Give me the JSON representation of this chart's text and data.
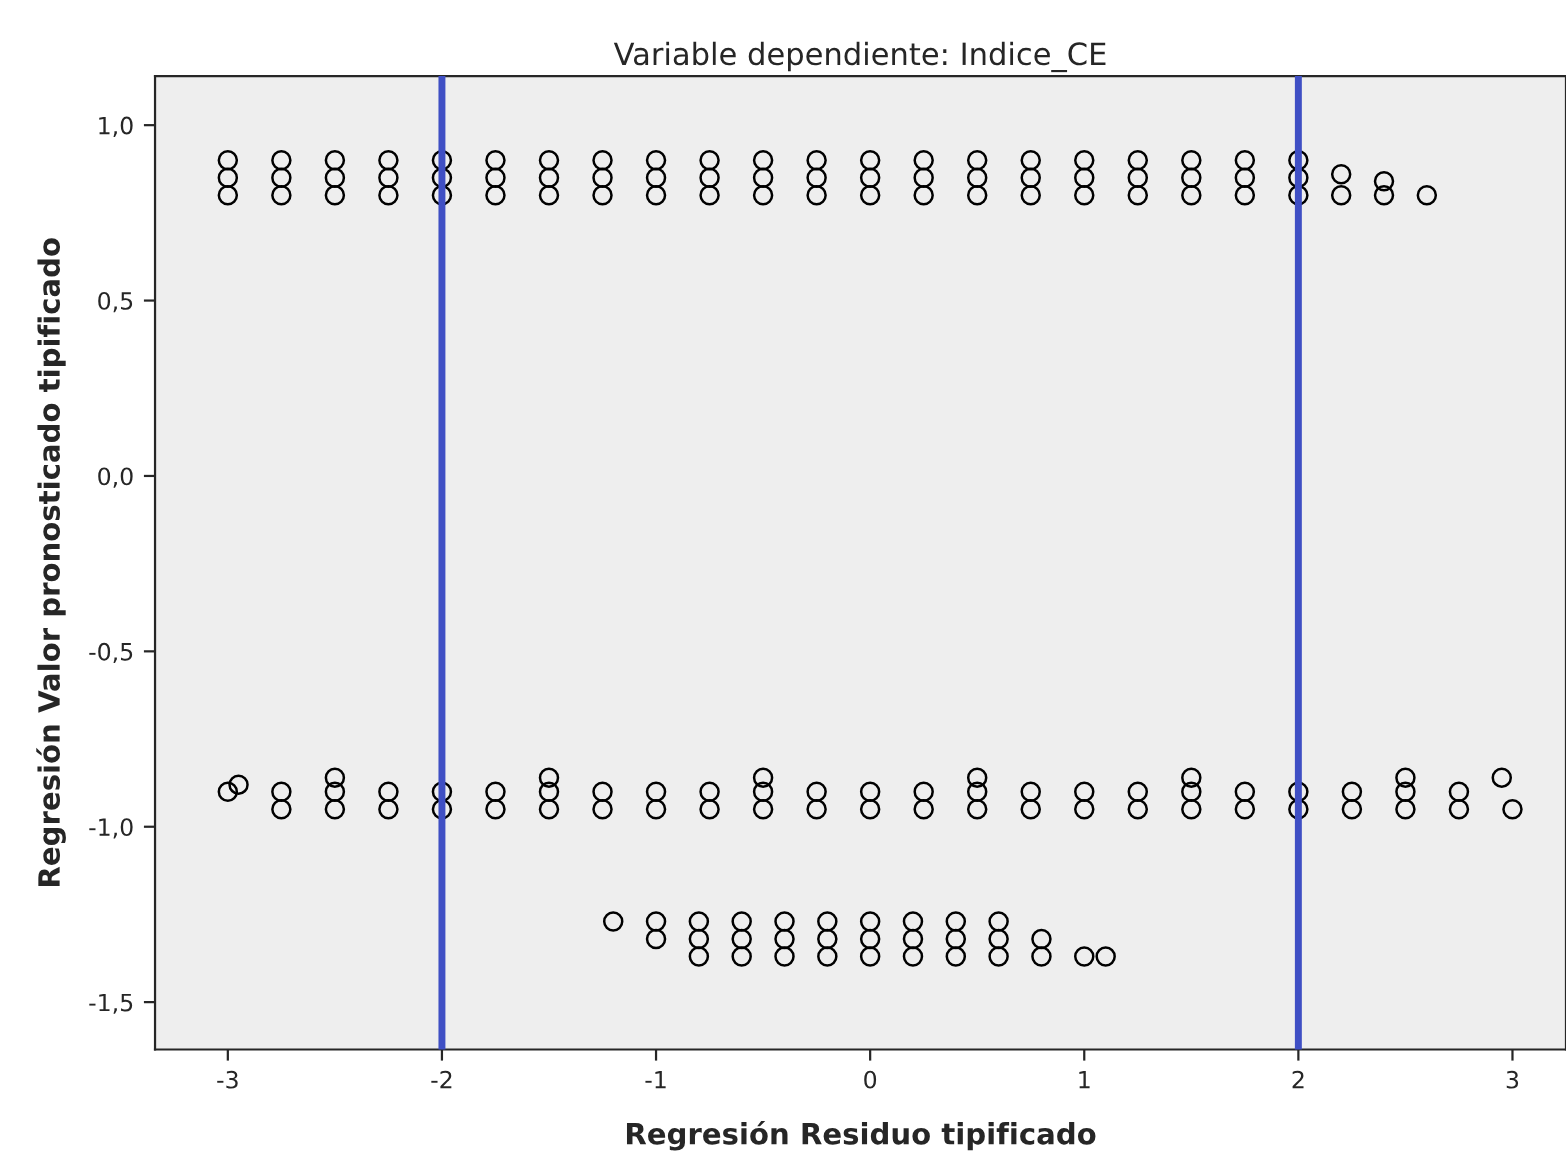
{
  "chart_data": {
    "type": "scatter",
    "title": "Variable dependiente: Indice_CE",
    "xlabel": "Regresión Residuo tipificado",
    "ylabel": "Regresión Valor pronosticado tipificado",
    "xlim": [
      -3.34,
      3.25
    ],
    "ylim": [
      -1.635,
      1.14
    ],
    "xticks": [
      -3,
      -2,
      -1,
      0,
      1,
      2,
      3
    ],
    "yticks": [
      {
        "value": -1.5,
        "label": "-1,5"
      },
      {
        "value": -1.0,
        "label": "-1,0"
      },
      {
        "value": -0.5,
        "label": "-0,5"
      },
      {
        "value": 0.0,
        "label": "0,0"
      },
      {
        "value": 0.5,
        "label": "0,5"
      },
      {
        "value": 1.0,
        "label": "1,0"
      }
    ],
    "grid": false,
    "legend": false,
    "marker": "circle",
    "ref_lines": [
      {
        "axis": "x",
        "value": -2,
        "color": "#3f4fc4"
      },
      {
        "axis": "x",
        "value": 2,
        "color": "#3f4fc4"
      }
    ],
    "series": [
      {
        "color": "#000000",
        "x": [
          -3,
          -2.75,
          -2.5,
          -2.25,
          -2,
          -1.75,
          -1.5,
          -1.25,
          -1,
          -0.75,
          -0.5,
          -0.25,
          0,
          0.25,
          0.5,
          0.75,
          1,
          1.25,
          1.5,
          1.75,
          2,
          -3,
          -2.75,
          -2.5,
          -2.25,
          -2,
          -1.75,
          -1.5,
          -1.25,
          -1,
          -0.75,
          -0.5,
          -0.25,
          0,
          0.25,
          0.5,
          0.75,
          1,
          1.25,
          1.5,
          1.75,
          2,
          -3,
          -2.75,
          -2.5,
          -2.25,
          -2,
          -1.75,
          -1.5,
          -1.25,
          -1,
          -0.75,
          -0.5,
          -0.25,
          0,
          0.25,
          0.5,
          0.75,
          1,
          1.25,
          1.5,
          1.75,
          2,
          2.2,
          2.2,
          2.4,
          2.4,
          2.6
        ],
        "values": [
          0.9,
          0.9,
          0.9,
          0.9,
          0.9,
          0.9,
          0.9,
          0.9,
          0.9,
          0.9,
          0.9,
          0.9,
          0.9,
          0.9,
          0.9,
          0.9,
          0.9,
          0.9,
          0.9,
          0.9,
          0.9,
          0.85,
          0.85,
          0.85,
          0.85,
          0.85,
          0.85,
          0.85,
          0.85,
          0.85,
          0.85,
          0.85,
          0.85,
          0.85,
          0.85,
          0.85,
          0.85,
          0.85,
          0.85,
          0.85,
          0.85,
          0.85,
          0.8,
          0.8,
          0.8,
          0.8,
          0.8,
          0.8,
          0.8,
          0.8,
          0.8,
          0.8,
          0.8,
          0.8,
          0.8,
          0.8,
          0.8,
          0.8,
          0.8,
          0.8,
          0.8,
          0.8,
          0.8,
          0.8,
          0.86,
          0.8,
          0.84,
          0.8
        ]
      },
      {
        "color": "#000000",
        "x": [
          -2.75,
          -2.5,
          -2.25,
          -2,
          -1.75,
          -1.5,
          -1.25,
          -1,
          -0.75,
          -0.5,
          -0.25,
          0,
          0.25,
          0.5,
          0.75,
          1,
          1.25,
          1.5,
          1.75,
          2,
          2.25,
          2.5,
          2.75,
          3,
          -3,
          -2.75,
          -2.5,
          -2.25,
          -2,
          -1.75,
          -1.5,
          -1.25,
          -1,
          -0.75,
          -0.5,
          -0.25,
          0,
          0.25,
          0.5,
          0.75,
          1,
          1.25,
          1.5,
          1.75,
          2,
          2.25,
          2.5,
          2.75,
          -2.5,
          -1.5,
          -0.5,
          0.5,
          1.5,
          2.5,
          2.95,
          -2.95
        ],
        "values": [
          -0.95,
          -0.95,
          -0.95,
          -0.95,
          -0.95,
          -0.95,
          -0.95,
          -0.95,
          -0.95,
          -0.95,
          -0.95,
          -0.95,
          -0.95,
          -0.95,
          -0.95,
          -0.95,
          -0.95,
          -0.95,
          -0.95,
          -0.95,
          -0.95,
          -0.95,
          -0.95,
          -0.95,
          -0.9,
          -0.9,
          -0.9,
          -0.9,
          -0.9,
          -0.9,
          -0.9,
          -0.9,
          -0.9,
          -0.9,
          -0.9,
          -0.9,
          -0.9,
          -0.9,
          -0.9,
          -0.9,
          -0.9,
          -0.9,
          -0.9,
          -0.9,
          -0.9,
          -0.9,
          -0.9,
          -0.9,
          -0.86,
          -0.86,
          -0.86,
          -0.86,
          -0.86,
          -0.86,
          -0.86,
          -0.88
        ]
      },
      {
        "color": "#000000",
        "x": [
          -1.2,
          -1,
          -0.8,
          -0.6,
          -0.4,
          -0.2,
          0,
          0.2,
          0.4,
          0.6,
          -1,
          -0.8,
          -0.6,
          -0.4,
          -0.2,
          0,
          0.2,
          0.4,
          0.6,
          0.8,
          -0.8,
          -0.6,
          -0.4,
          -0.2,
          0,
          0.2,
          0.4,
          0.6,
          0.8,
          1,
          1.1
        ],
        "values": [
          -1.27,
          -1.27,
          -1.27,
          -1.27,
          -1.27,
          -1.27,
          -1.27,
          -1.27,
          -1.27,
          -1.27,
          -1.32,
          -1.32,
          -1.32,
          -1.32,
          -1.32,
          -1.32,
          -1.32,
          -1.32,
          -1.32,
          -1.32,
          -1.37,
          -1.37,
          -1.37,
          -1.37,
          -1.37,
          -1.37,
          -1.37,
          -1.37,
          -1.37,
          -1.37,
          -1.37
        ]
      }
    ]
  }
}
